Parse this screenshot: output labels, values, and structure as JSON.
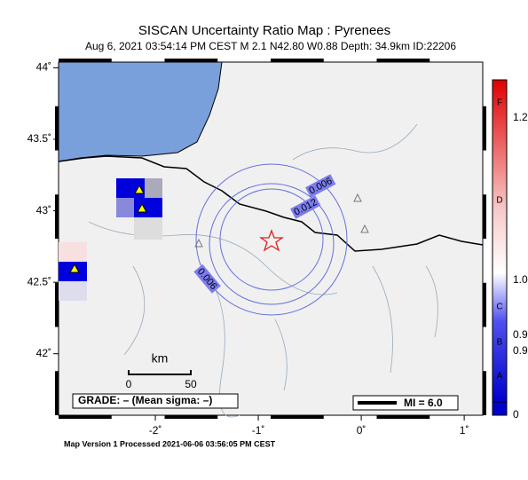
{
  "header": {
    "title": "SISCAN Uncertainty Ratio Map : Pyrenees",
    "subtitle": "Aug  6, 2021 03:54:14 PM CEST   M 2.1   N42.80 W0.88   Depth: 34.9km   ID:22206"
  },
  "map": {
    "xlim": [
      -2.94,
      1.18
    ],
    "ylim": [
      41.57,
      44.04
    ],
    "xticks": [
      {
        "value": -2,
        "label": "-2˚"
      },
      {
        "value": -1,
        "label": "-1˚"
      },
      {
        "value": 0,
        "label": "0˚"
      },
      {
        "value": 1,
        "label": "1˚"
      }
    ],
    "yticks": [
      {
        "value": 44,
        "label": "44˚"
      },
      {
        "value": 43.5,
        "label": "43.5˚"
      },
      {
        "value": 43,
        "label": "43˚"
      },
      {
        "value": 42.5,
        "label": "42.5˚"
      },
      {
        "value": 42,
        "label": "42˚"
      }
    ],
    "contour_labels": [
      "0.006",
      "0.012",
      "0.006"
    ],
    "scale": {
      "unit": "km",
      "start": "0",
      "end": "50"
    },
    "grade": "GRADE: – (Mean sigma: –)",
    "mi": "MI = 6.0"
  },
  "colorbar": {
    "grades": [
      "F",
      "D",
      "C",
      "B",
      "A"
    ],
    "ticks": [
      "1.2",
      "1.0",
      "0.9",
      "0.9",
      "0"
    ]
  },
  "footer": "Map Version 1 Processed 2021-06-06 03:56:05 PM CEST"
}
